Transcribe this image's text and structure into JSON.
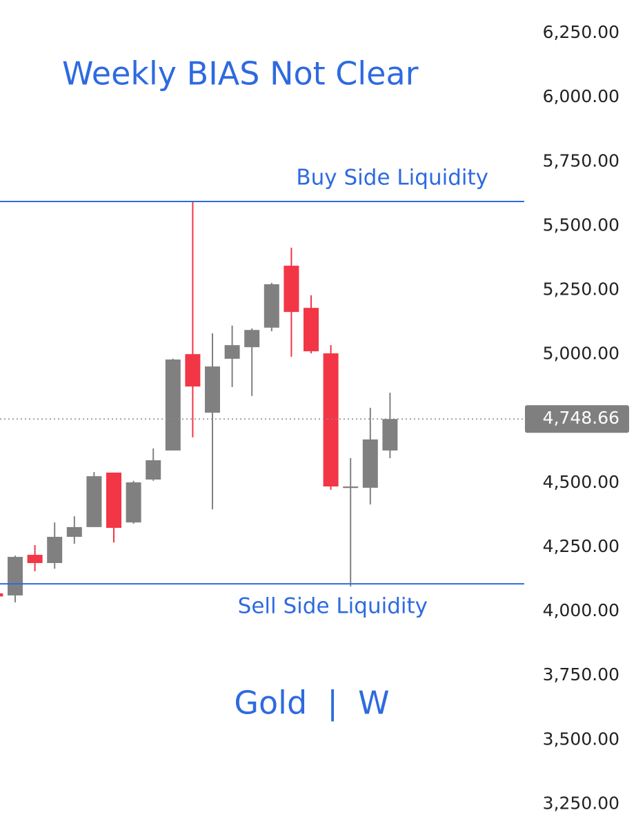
{
  "chart_data": {
    "type": "candlestick",
    "title": "Weekly BIAS Not Clear",
    "subtitle": "Gold  |  W",
    "up_color": "#808080",
    "down_color": "#f23645",
    "level_color": "#2e6ae0",
    "candles": [
      {
        "open": 4070,
        "high": 4075,
        "low": 4052,
        "close": 4058
      },
      {
        "open": 4062,
        "high": 4217,
        "low": 4035,
        "close": 4212
      },
      {
        "open": 4220,
        "high": 4258,
        "low": 4156,
        "close": 4188
      },
      {
        "open": 4188,
        "high": 4346,
        "low": 4166,
        "close": 4290
      },
      {
        "open": 4290,
        "high": 4370,
        "low": 4263,
        "close": 4328
      },
      {
        "open": 4328,
        "high": 4542,
        "low": 4328,
        "close": 4526
      },
      {
        "open": 4540,
        "high": 4540,
        "low": 4268,
        "close": 4325
      },
      {
        "open": 4346,
        "high": 4508,
        "low": 4341,
        "close": 4502
      },
      {
        "open": 4513,
        "high": 4634,
        "low": 4508,
        "close": 4588
      },
      {
        "open": 4626,
        "high": 4983,
        "low": 4626,
        "close": 4980
      },
      {
        "open": 5001,
        "high": 5595,
        "low": 4677,
        "close": 4875
      },
      {
        "open": 4773,
        "high": 5082,
        "low": 4397,
        "close": 4953
      },
      {
        "open": 4983,
        "high": 5112,
        "low": 4873,
        "close": 5036
      },
      {
        "open": 5028,
        "high": 5101,
        "low": 4838,
        "close": 5095
      },
      {
        "open": 5104,
        "high": 5278,
        "low": 5090,
        "close": 5273
      },
      {
        "open": 5345,
        "high": 5415,
        "low": 4991,
        "close": 5165
      },
      {
        "open": 5181,
        "high": 5230,
        "low": 5004,
        "close": 5012
      },
      {
        "open": 5004,
        "high": 5036,
        "low": 4473,
        "close": 4486
      },
      {
        "open": 4480,
        "high": 4596,
        "low": 4097,
        "close": 4486
      },
      {
        "open": 4481,
        "high": 4792,
        "low": 4416,
        "close": 4669
      },
      {
        "open": 4626,
        "high": 4851,
        "low": 4596,
        "close": 4748.66
      }
    ],
    "levels": [
      {
        "label": "Buy Side Liquidity",
        "value": 5595
      },
      {
        "label": "Sell Side Liquidity",
        "value": 4107
      }
    ],
    "last_price": {
      "value": 4748.66,
      "label": "4,748.66"
    },
    "ylim": [
      3157,
      6379
    ],
    "yticks": [
      {
        "value": 6250,
        "label": "6,250.00"
      },
      {
        "value": 6000,
        "label": "6,000.00"
      },
      {
        "value": 5750,
        "label": "5,750.00"
      },
      {
        "value": 5500,
        "label": "5,500.00"
      },
      {
        "value": 5250,
        "label": "5,250.00"
      },
      {
        "value": 5000,
        "label": "5,000.00"
      },
      {
        "value": 4500,
        "label": "4,500.00"
      },
      {
        "value": 4250,
        "label": "4,250.00"
      },
      {
        "value": 4000,
        "label": "4,000.00"
      },
      {
        "value": 3750,
        "label": "3,750.00"
      },
      {
        "value": 3500,
        "label": "3,500.00"
      },
      {
        "value": 3250,
        "label": "3,250.00"
      }
    ]
  }
}
